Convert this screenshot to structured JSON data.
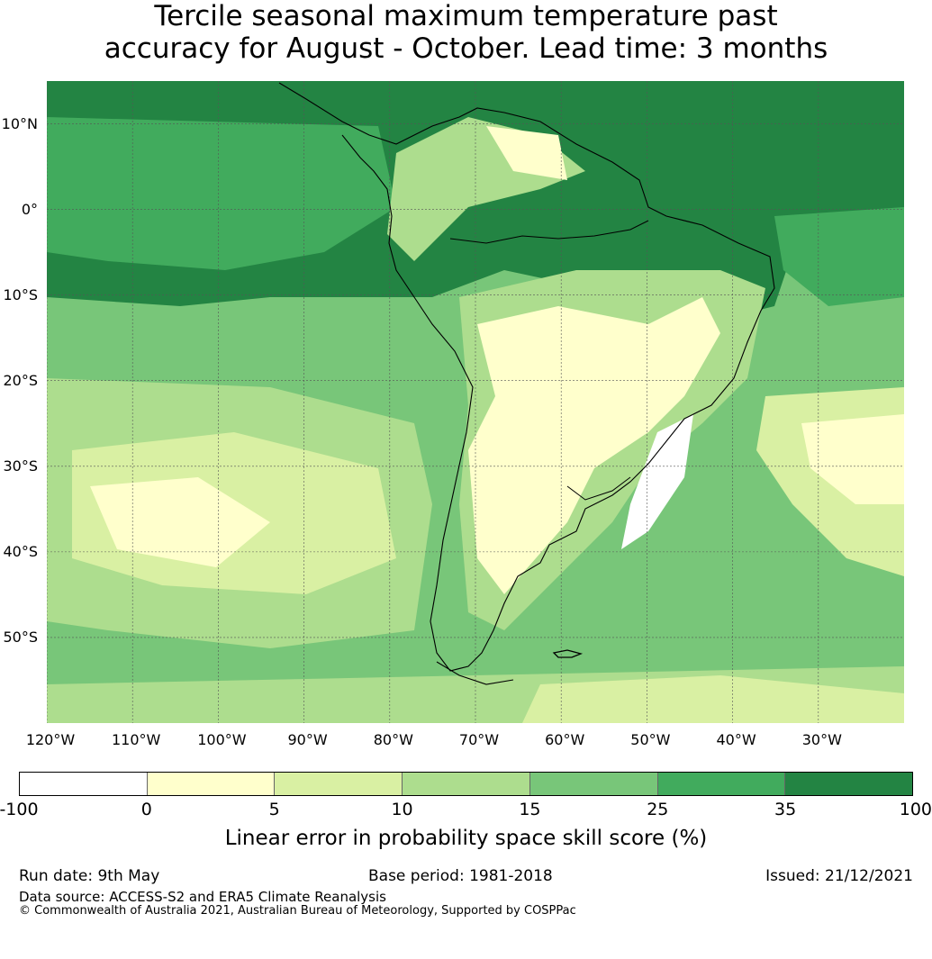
{
  "title_line1": "Tercile seasonal maximum temperature past",
  "title_line2": "accuracy for August - October. Lead time: 3 months",
  "map": {
    "lat_ticks": [
      {
        "lat": 10,
        "label": "10°N"
      },
      {
        "lat": 0,
        "label": "0°"
      },
      {
        "lat": -10,
        "label": "10°S"
      },
      {
        "lat": -20,
        "label": "20°S"
      },
      {
        "lat": -30,
        "label": "30°S"
      },
      {
        "lat": -40,
        "label": "40°S"
      },
      {
        "lat": -50,
        "label": "50°S"
      }
    ],
    "lon_ticks": [
      {
        "lon": -120,
        "label": "120°W"
      },
      {
        "lon": -110,
        "label": "110°W"
      },
      {
        "lon": -100,
        "label": "100°W"
      },
      {
        "lon": -90,
        "label": "90°W"
      },
      {
        "lon": -80,
        "label": "80°W"
      },
      {
        "lon": -70,
        "label": "70°W"
      },
      {
        "lon": -60,
        "label": "60°W"
      },
      {
        "lon": -50,
        "label": "50°W"
      },
      {
        "lon": -40,
        "label": "40°W"
      },
      {
        "lon": -30,
        "label": "30°W"
      }
    ],
    "lon_range": [
      -120,
      -20
    ],
    "lat_range": [
      -60,
      15
    ]
  },
  "colorbar": {
    "ticks": [
      "-100",
      "0",
      "5",
      "10",
      "15",
      "25",
      "35",
      "100"
    ],
    "colors": [
      "#ffffff",
      "#ffffcc",
      "#d9f0a3",
      "#addd8e",
      "#78c679",
      "#41ab5d",
      "#238443"
    ],
    "label": "Linear error in probability space skill score (%)"
  },
  "footer": {
    "run_date": "Run date: 9th May",
    "base_period": "Base period: 1981-2018",
    "issued": "Issued: 21/12/2021",
    "data_source": "Data source: ACCESS-S2 and ERA5 Climate Reanalysis",
    "copyright": "© Commonwealth of Australia 2021, Australian Bureau of Meteorology, Supported by COSPPac"
  }
}
